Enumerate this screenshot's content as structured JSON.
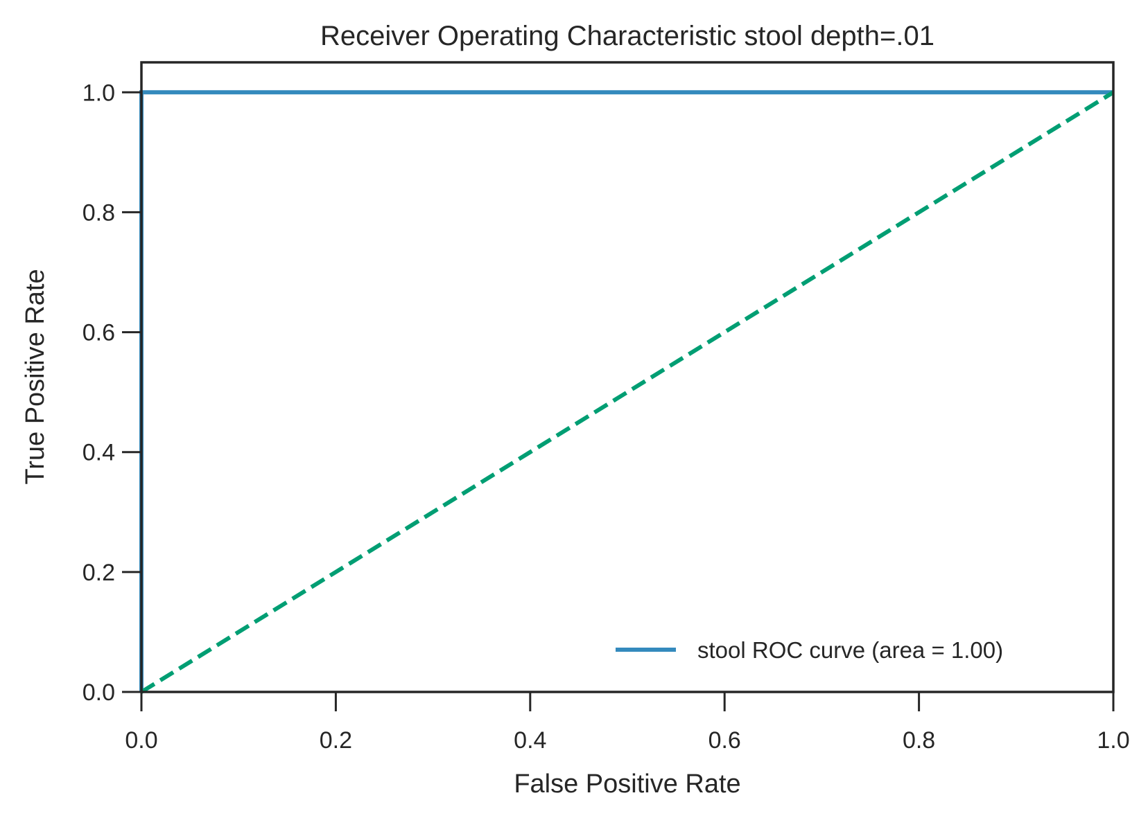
{
  "chart_data": {
    "type": "line",
    "title": "Receiver Operating Characteristic stool depth=.01",
    "xlabel": "False Positive Rate",
    "ylabel": "True Positive Rate",
    "xlim": [
      0.0,
      1.0
    ],
    "ylim": [
      0.0,
      1.05
    ],
    "x_ticks": [
      "0.0",
      "0.2",
      "0.4",
      "0.6",
      "0.8",
      "1.0"
    ],
    "y_ticks": [
      "0.0",
      "0.2",
      "0.4",
      "0.6",
      "0.8",
      "1.0"
    ],
    "grid": false,
    "legend_position": "lower-right",
    "series": [
      {
        "name": "stool ROC curve (area = 1.00)",
        "color": "#348abd",
        "style": "solid",
        "x": [
          0.0,
          0.0,
          1.0
        ],
        "y": [
          0.0,
          1.0,
          1.0
        ]
      },
      {
        "color": "#009e73",
        "style": "dashed",
        "x": [
          0.0,
          1.0
        ],
        "y": [
          0.0,
          1.0
        ]
      }
    ]
  }
}
